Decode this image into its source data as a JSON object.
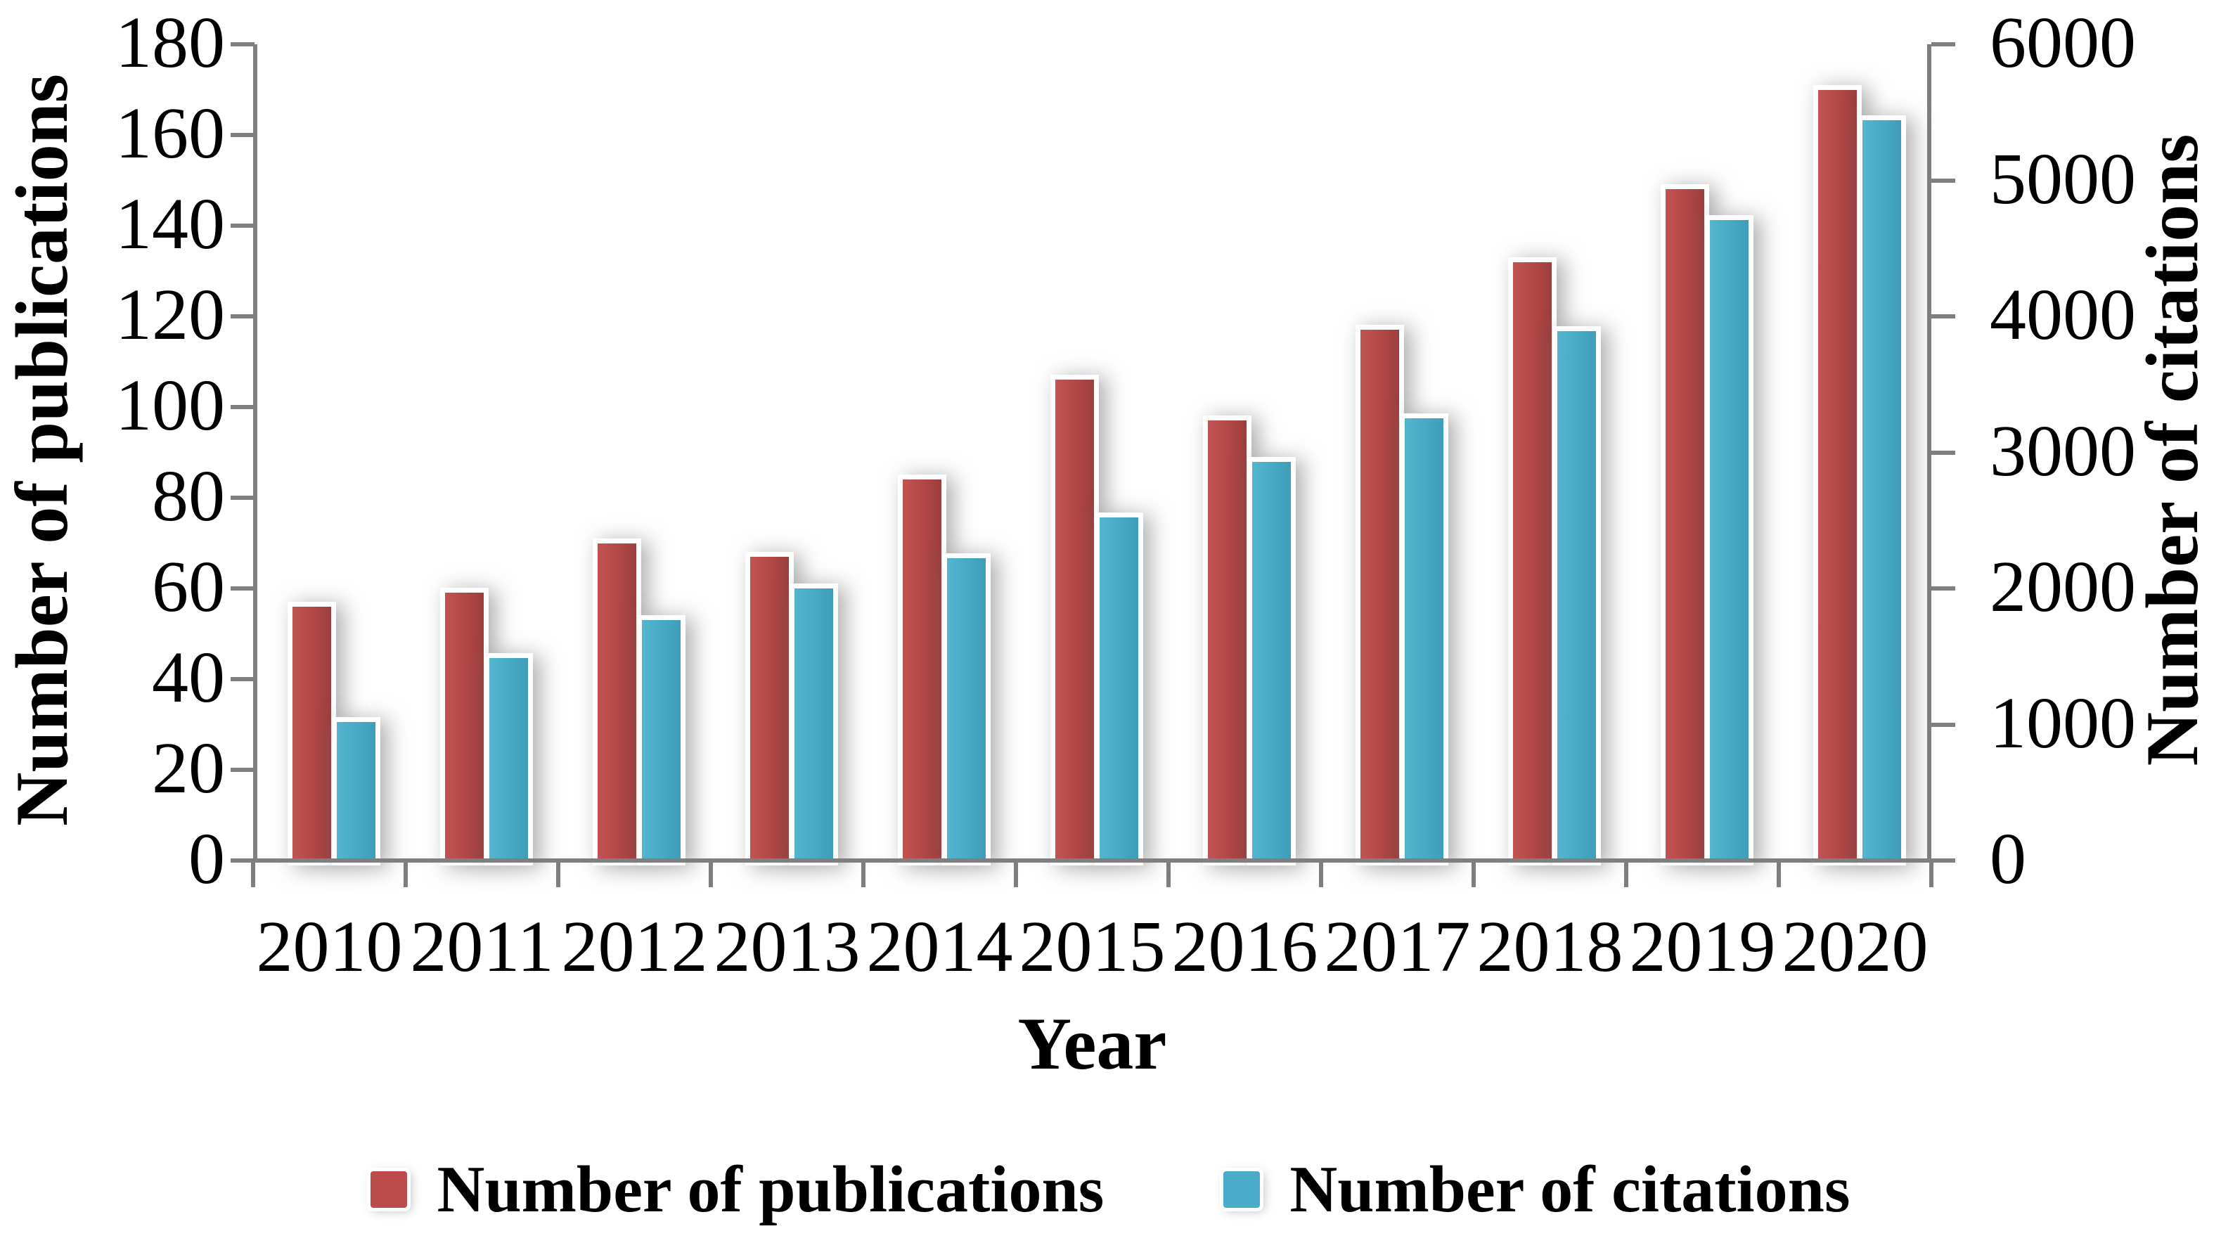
{
  "chart_data": {
    "type": "bar",
    "title": "",
    "categories": [
      "2010",
      "2011",
      "2012",
      "2013",
      "2014",
      "2015",
      "2016",
      "2017",
      "2018",
      "2019",
      "2020"
    ],
    "series": [
      {
        "name": "Number of publications",
        "axis": "left",
        "color": "#BE4B4B",
        "values": [
          56,
          59,
          70,
          67,
          84,
          106,
          97,
          117,
          132,
          148,
          170
        ]
      },
      {
        "name": "Number of citations",
        "axis": "right",
        "color": "#4AACC9",
        "values": [
          1020,
          1490,
          1770,
          2000,
          2220,
          2520,
          2930,
          3250,
          3890,
          4710,
          5440
        ]
      }
    ],
    "left_axis": {
      "title": "Number of publications",
      "min": 0,
      "max": 180,
      "step": 20,
      "tick_labels": [
        "180",
        "160",
        "140",
        "120",
        "100",
        "80",
        "60",
        "40",
        "20",
        "0"
      ]
    },
    "right_axis": {
      "title": "Number of citations",
      "min": 0,
      "max": 6000,
      "step": 1000,
      "tick_labels": [
        "6000",
        "5000",
        "4000",
        "3000",
        "2000",
        "1000",
        "0"
      ]
    },
    "x_axis": {
      "title": "Year"
    },
    "legend": {
      "position": "bottom",
      "items": [
        "Number of publications",
        "Number of citations"
      ]
    },
    "grid": false
  },
  "colors": {
    "publications_bar": "#BE4B4B",
    "citations_bar": "#4AACC9",
    "axis_line": "#7F7F7F",
    "text": "#000000",
    "background": "#FFFFFF"
  }
}
